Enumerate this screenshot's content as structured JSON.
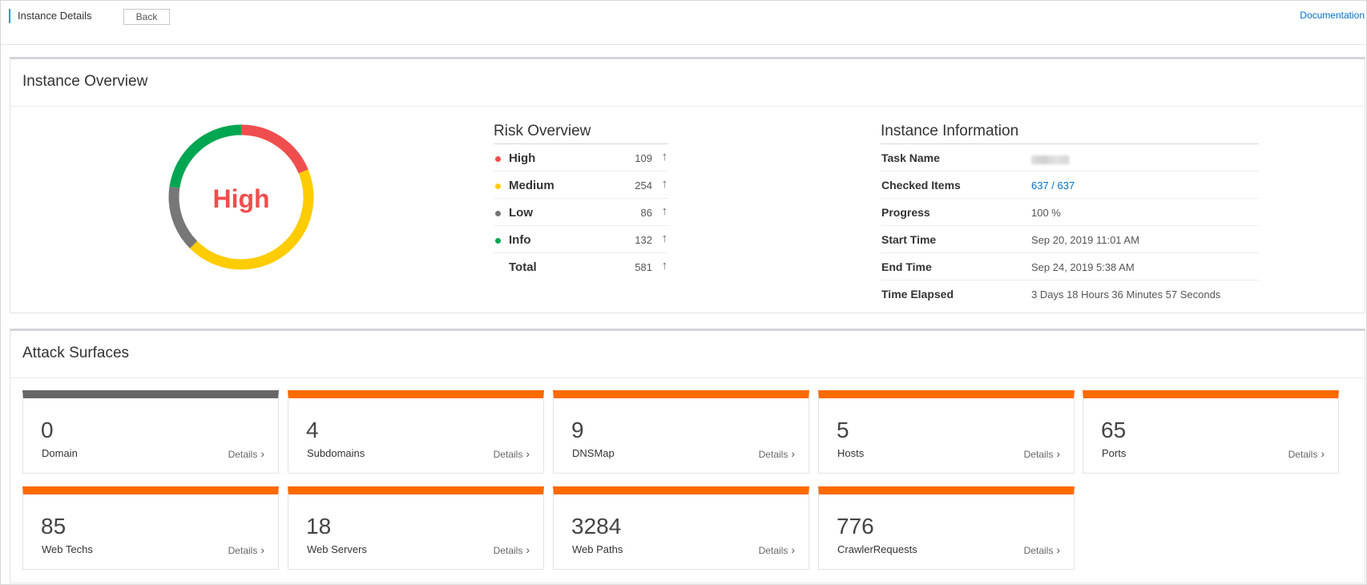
{
  "header": {
    "title": "Instance Details",
    "back_label": "Back",
    "doc_label": "Documentation"
  },
  "overview": {
    "title": "Instance Overview",
    "donut": {
      "center_label": "High",
      "center_color": "#f04e4e",
      "segments": [
        {
          "name": "High",
          "value": 109,
          "color": "#f04e4e"
        },
        {
          "name": "Medium",
          "value": 254,
          "color": "#ffcc00"
        },
        {
          "name": "Low",
          "value": 86,
          "color": "#777777"
        },
        {
          "name": "Info",
          "value": 132,
          "color": "#00a651"
        }
      ]
    },
    "risk": {
      "title": "Risk Overview",
      "rows": [
        {
          "label": "High",
          "value": "109",
          "color": "#f04e4e"
        },
        {
          "label": "Medium",
          "value": "254",
          "color": "#ffcc00"
        },
        {
          "label": "Low",
          "value": "86",
          "color": "#777777"
        },
        {
          "label": "Info",
          "value": "132",
          "color": "#00a651"
        },
        {
          "label": "Total",
          "value": "581",
          "color": ""
        }
      ],
      "arrow_glyph": "↑"
    },
    "info": {
      "title": "Instance Information",
      "rows": [
        {
          "label": "Task Name",
          "value": ""
        },
        {
          "label": "Checked Items",
          "value": "637 / 637"
        },
        {
          "label": "Progress",
          "value": "100 %"
        },
        {
          "label": "Start Time",
          "value": "Sep 20, 2019 11:01 AM"
        },
        {
          "label": "End Time",
          "value": "Sep 24, 2019 5:38 AM"
        },
        {
          "label": "Time Elapsed",
          "value": "3 Days 18 Hours 36 Minutes 57 Seconds"
        }
      ]
    }
  },
  "attack": {
    "title": "Attack Surfaces",
    "details_label": "Details",
    "cards": [
      {
        "value": "0",
        "label": "Domain"
      },
      {
        "value": "4",
        "label": "Subdomains"
      },
      {
        "value": "9",
        "label": "DNSMap"
      },
      {
        "value": "5",
        "label": "Hosts"
      },
      {
        "value": "65",
        "label": "Ports"
      },
      {
        "value": "85",
        "label": "Web Techs"
      },
      {
        "value": "18",
        "label": "Web Servers"
      },
      {
        "value": "3284",
        "label": "Web Paths"
      },
      {
        "value": "776",
        "label": "CrawlerRequests"
      }
    ],
    "accent_color": "#ff6a00",
    "zero_color": "#666666"
  }
}
